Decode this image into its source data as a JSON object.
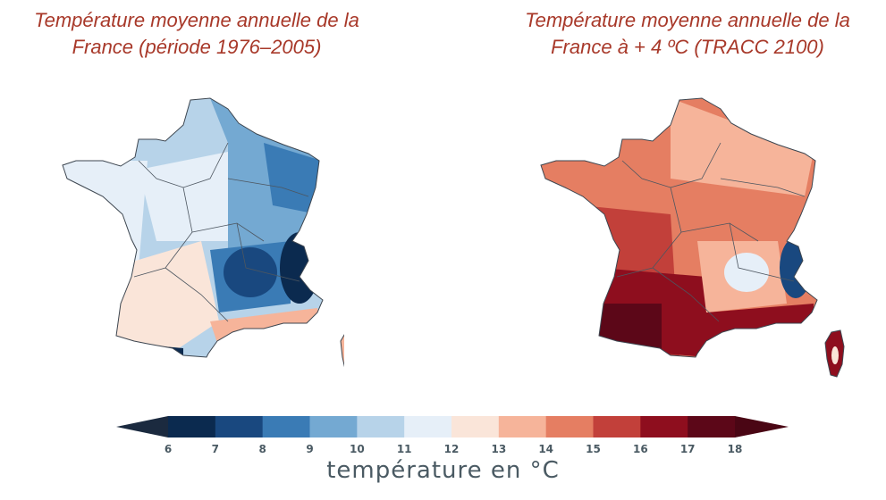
{
  "maps": [
    {
      "title_line1": "Température moyenne annuelle de la",
      "title_line2": "France (période 1976–2005)"
    },
    {
      "title_line1": "Température moyenne annuelle de la",
      "title_line2": "France à + 4 ºC (TRACC 2100)"
    }
  ],
  "colorbar": {
    "title": "température en °C",
    "ticks": [
      "6",
      "7",
      "8",
      "9",
      "10",
      "11",
      "12",
      "13",
      "14",
      "15",
      "16",
      "17",
      "18"
    ],
    "colors": [
      "#0b2a4f",
      "#19487f",
      "#3a7bb5",
      "#74a9d2",
      "#b7d3e9",
      "#e6eff8",
      "#fae5d9",
      "#f6b49a",
      "#e57e62",
      "#c2403a",
      "#8e0e1e",
      "#5c0718"
    ],
    "under_color": "#1b2a3f",
    "over_color": "#4a0614"
  }
}
